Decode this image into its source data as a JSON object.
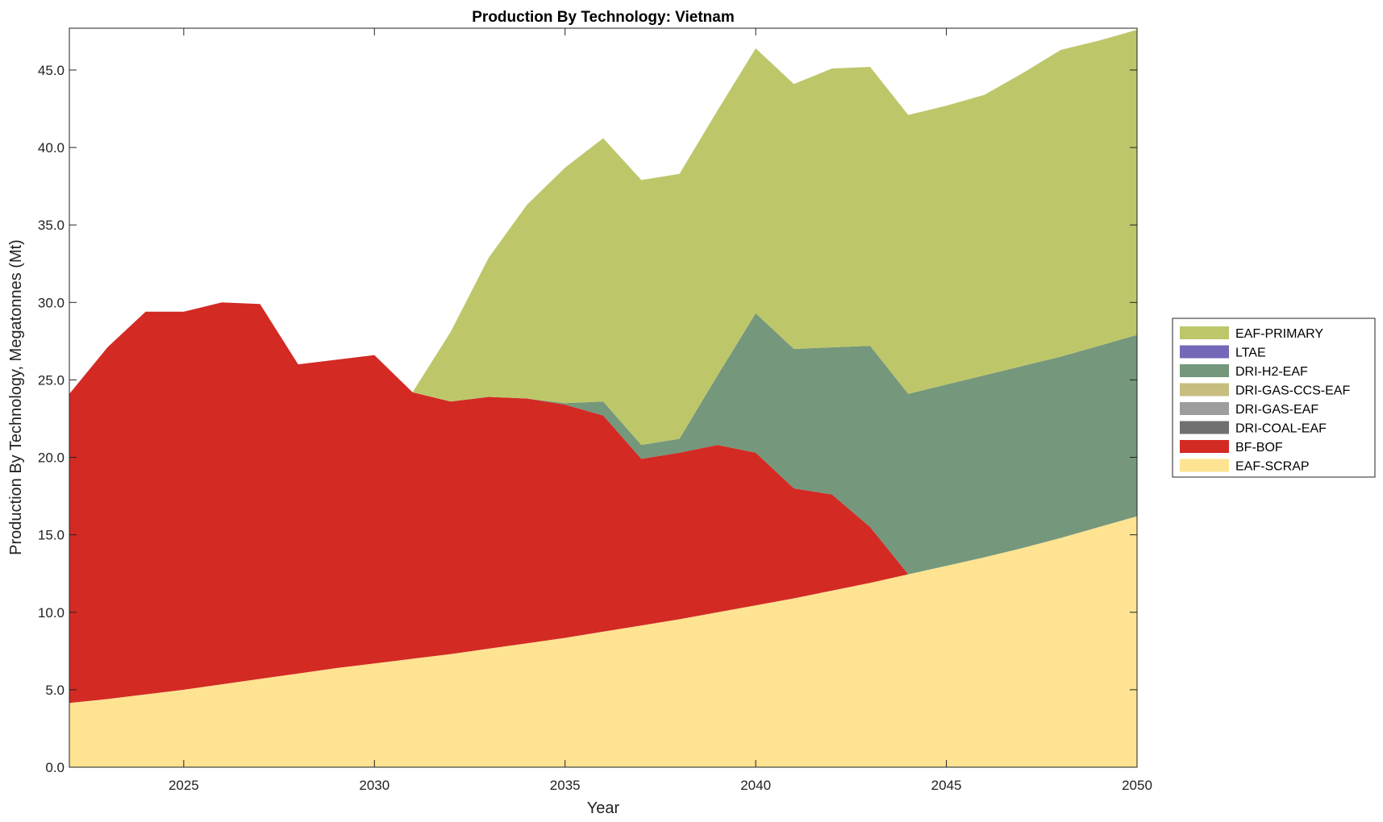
{
  "chart_data": {
    "type": "area",
    "stacked": true,
    "title": "Production By Technology: Vietnam",
    "xlabel": "Year",
    "ylabel": "Production By Technology, Megatonnes (Mt)",
    "xlim": [
      2022,
      2050
    ],
    "ylim": [
      0,
      47.7
    ],
    "xticks": [
      2025,
      2030,
      2035,
      2040,
      2045,
      2050
    ],
    "yticks": [
      "0.0",
      "5.0",
      "10.0",
      "15.0",
      "20.0",
      "25.0",
      "30.0",
      "35.0",
      "40.0",
      "45.0"
    ],
    "legend_position": "outside-right",
    "x": [
      2022,
      2023,
      2024,
      2025,
      2026,
      2027,
      2028,
      2029,
      2030,
      2031,
      2032,
      2033,
      2034,
      2035,
      2036,
      2037,
      2038,
      2039,
      2040,
      2041,
      2042,
      2043,
      2044,
      2045,
      2046,
      2047,
      2048,
      2049,
      2050
    ],
    "series": [
      {
        "name": "EAF-SCRAP",
        "color": "#fde392",
        "values": [
          4.15,
          4.4,
          4.7,
          5.0,
          5.35,
          5.7,
          6.05,
          6.4,
          6.7,
          7.0,
          7.3,
          7.65,
          8.0,
          8.35,
          8.75,
          9.15,
          9.55,
          10.0,
          10.45,
          10.9,
          11.4,
          11.9,
          12.45,
          13.0,
          13.55,
          14.15,
          14.8,
          15.5,
          16.2
        ]
      },
      {
        "name": "BF-BOF",
        "color": "#d32a24",
        "values": [
          19.95,
          22.7,
          24.7,
          24.4,
          24.65,
          24.2,
          19.95,
          19.9,
          19.9,
          17.2,
          16.3,
          16.25,
          15.8,
          15.05,
          13.95,
          10.75,
          10.75,
          10.8,
          9.85,
          7.1,
          6.2,
          3.6,
          0,
          0,
          0,
          0,
          0,
          0,
          0
        ]
      },
      {
        "name": "DRI-COAL-EAF",
        "color": "#707070",
        "values": [
          0,
          0,
          0,
          0,
          0,
          0,
          0,
          0,
          0,
          0,
          0,
          0,
          0,
          0,
          0,
          0,
          0,
          0,
          0,
          0,
          0,
          0,
          0,
          0,
          0,
          0,
          0,
          0,
          0
        ]
      },
      {
        "name": "DRI-GAS-EAF",
        "color": "#9d9d9d",
        "values": [
          0,
          0,
          0,
          0,
          0,
          0,
          0,
          0,
          0,
          0,
          0,
          0,
          0,
          0,
          0,
          0,
          0,
          0,
          0,
          0,
          0,
          0,
          0,
          0,
          0,
          0,
          0,
          0,
          0
        ]
      },
      {
        "name": "DRI-GAS-CCS-EAF",
        "color": "#c6bd7e",
        "values": [
          0,
          0,
          0,
          0,
          0,
          0,
          0,
          0,
          0,
          0,
          0,
          0,
          0,
          0,
          0,
          0,
          0,
          0,
          0,
          0,
          0,
          0,
          0,
          0,
          0,
          0,
          0,
          0,
          0
        ]
      },
      {
        "name": "DRI-H2-EAF",
        "color": "#75977c",
        "values": [
          0,
          0,
          0,
          0,
          0,
          0,
          0,
          0,
          0,
          0,
          0,
          0,
          0,
          0.1,
          0.9,
          0.9,
          0.9,
          4.5,
          9.0,
          9.0,
          9.5,
          11.7,
          11.65,
          11.7,
          11.75,
          11.75,
          11.7,
          11.7,
          11.7
        ]
      },
      {
        "name": "LTAE",
        "color": "#7468b8",
        "values": [
          0,
          0,
          0,
          0,
          0,
          0,
          0,
          0,
          0,
          0,
          0,
          0,
          0,
          0,
          0,
          0,
          0,
          0,
          0,
          0,
          0,
          0,
          0,
          0,
          0,
          0,
          0,
          0,
          0
        ]
      },
      {
        "name": "EAF-PRIMARY",
        "color": "#bdc76a",
        "values": [
          0,
          0,
          0,
          0,
          0,
          0,
          0,
          0,
          0,
          0,
          4.5,
          9.0,
          12.5,
          15.2,
          17.0,
          17.1,
          17.1,
          17.1,
          17.1,
          17.1,
          18.0,
          18.0,
          18.0,
          18.0,
          18.1,
          18.9,
          19.8,
          19.7,
          19.7
        ]
      }
    ],
    "legend_order": [
      "EAF-PRIMARY",
      "LTAE",
      "DRI-H2-EAF",
      "DRI-GAS-CCS-EAF",
      "DRI-GAS-EAF",
      "DRI-COAL-EAF",
      "BF-BOF",
      "EAF-SCRAP"
    ]
  }
}
